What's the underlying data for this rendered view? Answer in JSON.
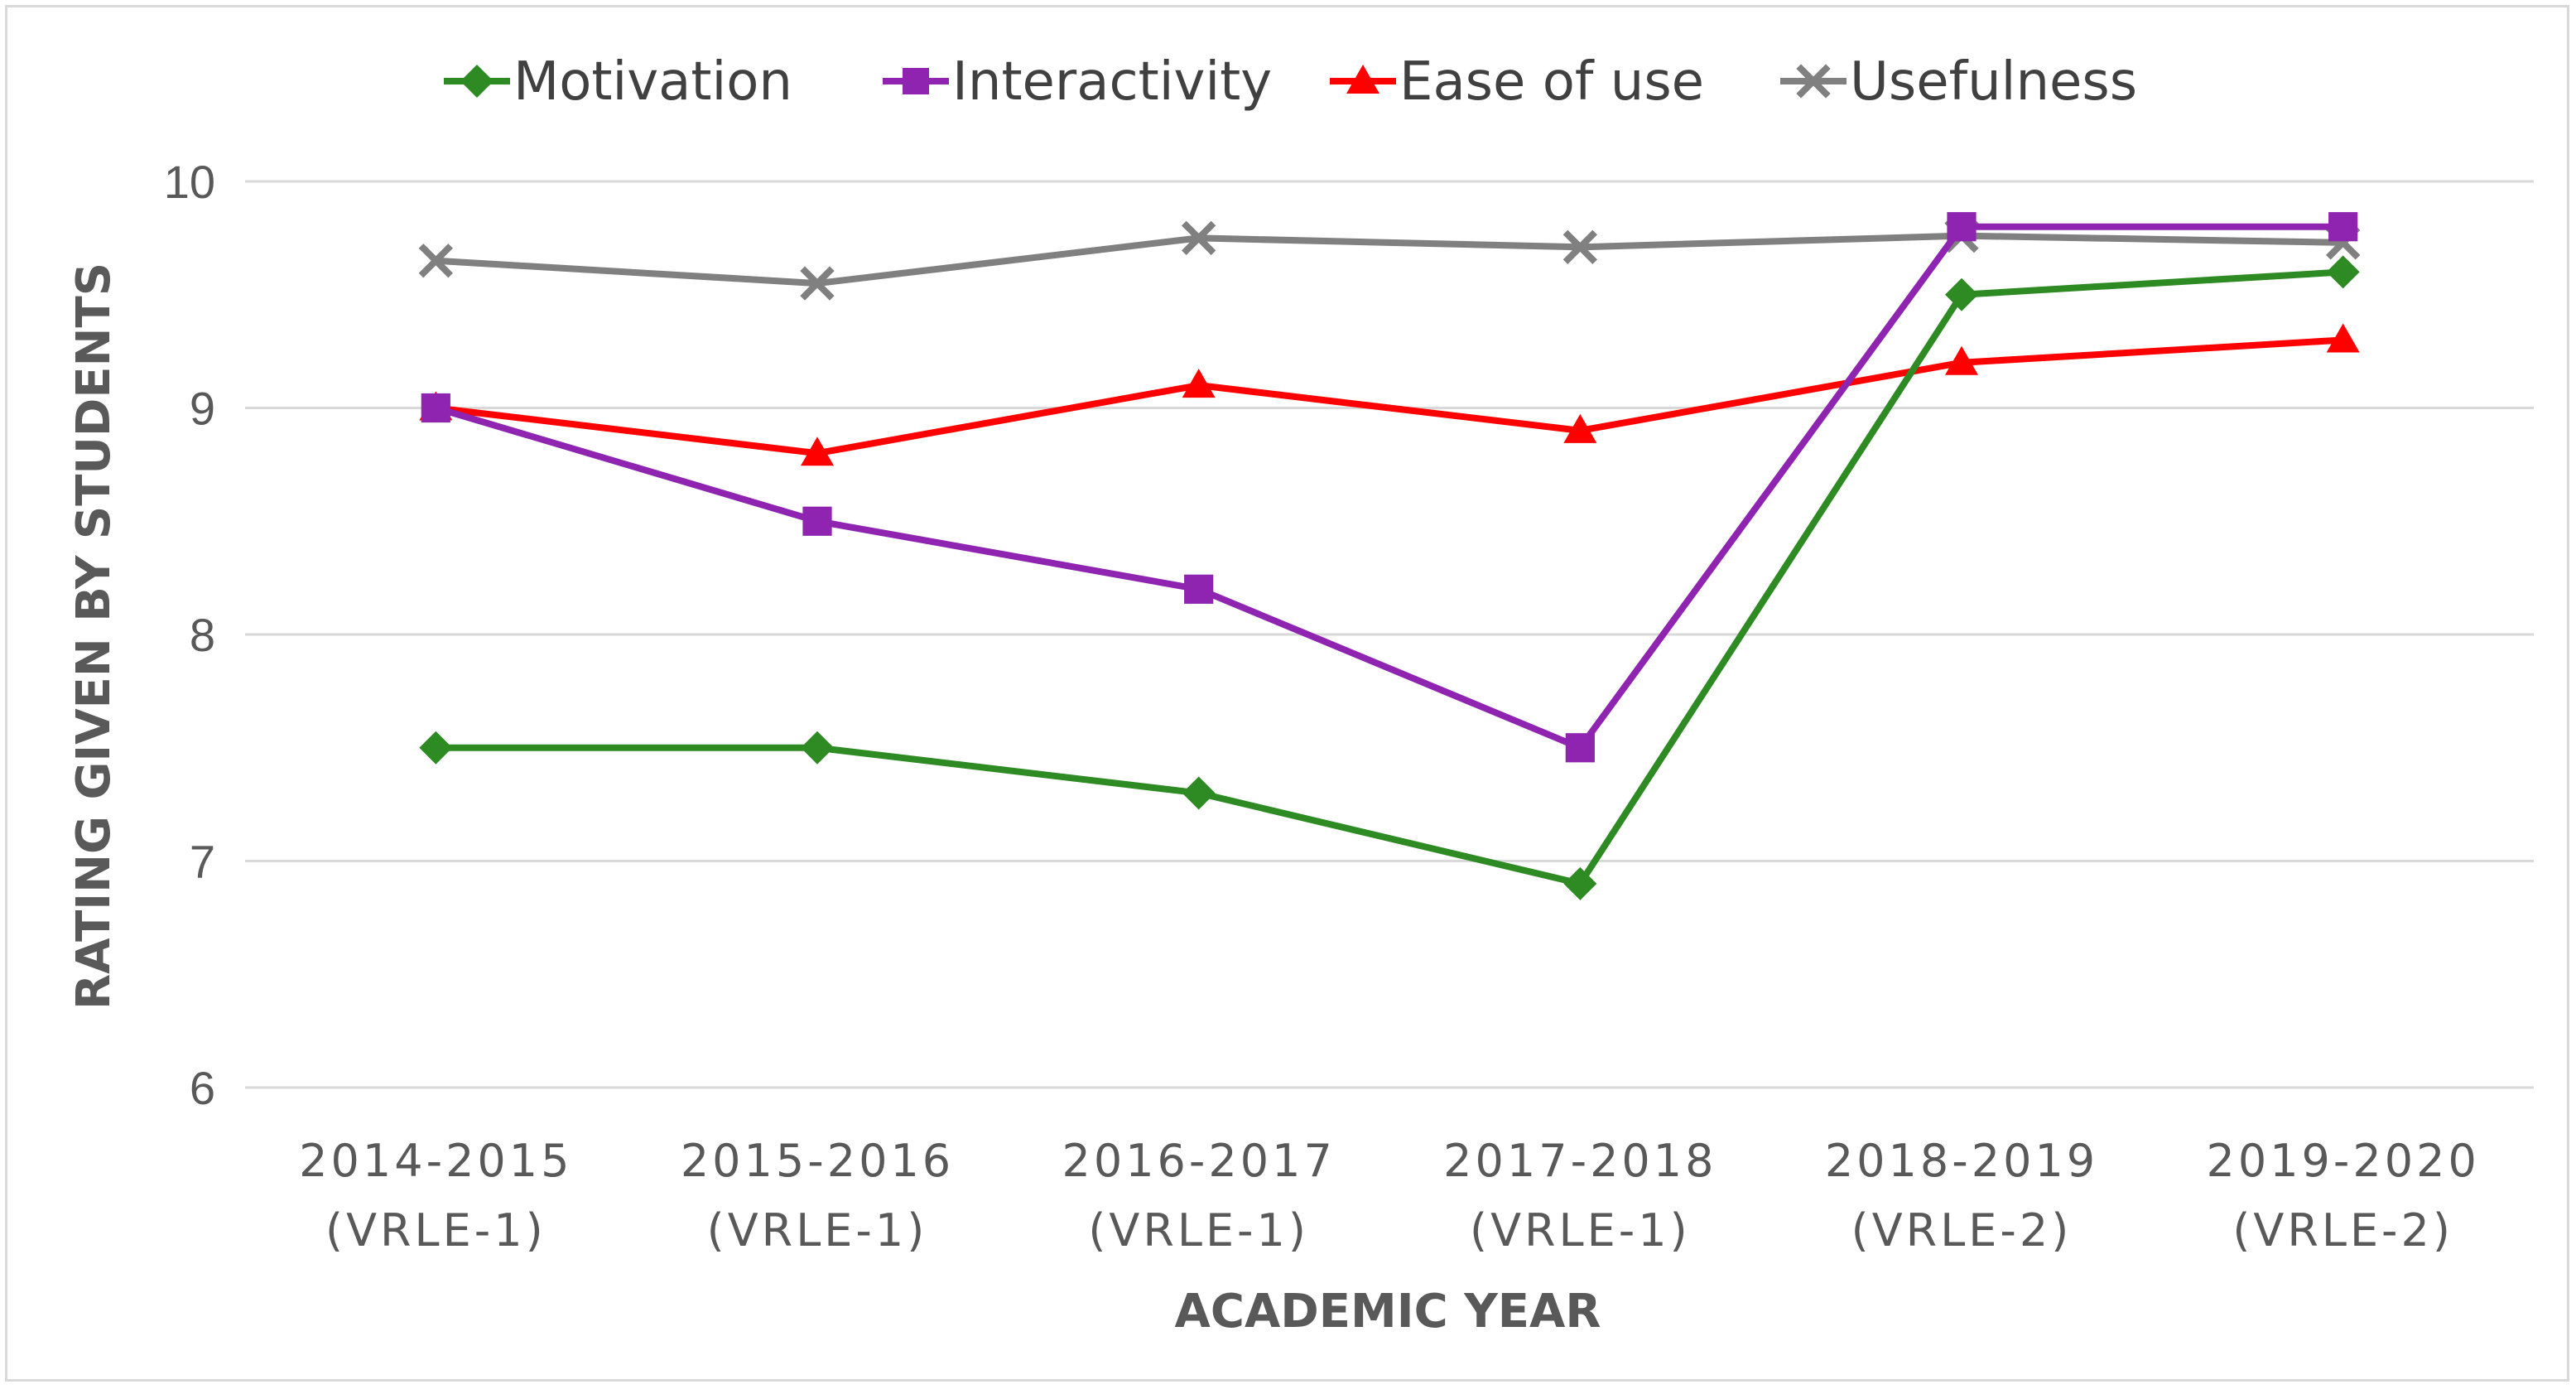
{
  "chart_data": {
    "type": "line",
    "categories": [
      [
        "2014-2015",
        "(VRLE-1)"
      ],
      [
        "2015-2016",
        "(VRLE-1)"
      ],
      [
        "2016-2017",
        "(VRLE-1)"
      ],
      [
        "2017-2018",
        "(VRLE-1)"
      ],
      [
        "2018-2019",
        "(VRLE-2)"
      ],
      [
        "2019-2020",
        "(VRLE-2)"
      ]
    ],
    "series": [
      {
        "name": "Motivation",
        "color": "#2e8b24",
        "marker": "diamond",
        "values": [
          7.5,
          7.5,
          7.3,
          6.9,
          9.5,
          9.6
        ]
      },
      {
        "name": "Interactivity",
        "color": "#8e24b0",
        "marker": "square",
        "values": [
          9.0,
          8.5,
          8.2,
          7.5,
          9.8,
          9.8
        ]
      },
      {
        "name": "Ease of use",
        "color": "#ff0000",
        "marker": "triangle",
        "values": [
          9.0,
          8.8,
          9.1,
          8.9,
          9.2,
          9.3
        ]
      },
      {
        "name": "Usefulness",
        "color": "#808080",
        "marker": "x",
        "values": [
          9.65,
          9.55,
          9.75,
          9.71,
          9.76,
          9.73
        ]
      }
    ],
    "xlabel": "ACADEMIC YEAR",
    "ylabel": "RATING GIVEN BY STUDENTS",
    "ylim": [
      6,
      10
    ],
    "yticks": [
      6,
      7,
      8,
      9,
      10
    ],
    "grid": true,
    "legend_position": "top"
  }
}
